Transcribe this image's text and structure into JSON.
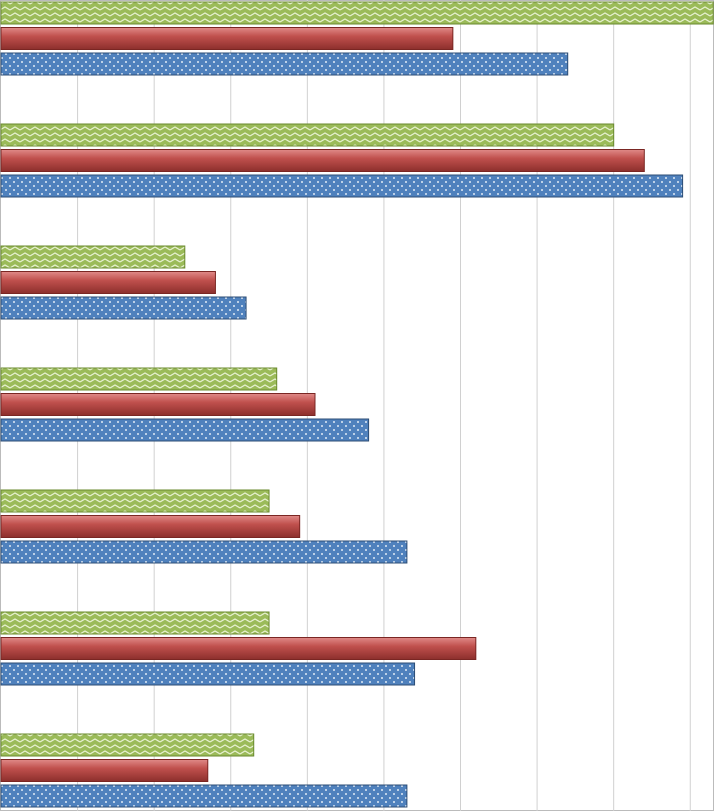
{
  "chart_data": {
    "type": "bar",
    "orientation": "horizontal",
    "categories": [
      null,
      null,
      null,
      null,
      null,
      null,
      null
    ],
    "series": [
      {
        "color": "#4f81bd",
        "values": [
          7.4,
          8.9,
          3.2,
          4.8,
          5.3,
          5.4,
          5.3
        ]
      },
      {
        "color": "#c0504d",
        "values": [
          5.9,
          8.4,
          2.8,
          4.1,
          3.9,
          6.2,
          2.7
        ]
      },
      {
        "color": "#9bbb59",
        "values": [
          9.3,
          8.0,
          2.4,
          3.6,
          3.5,
          3.5,
          3.3
        ]
      }
    ],
    "xlim": [
      0,
      9.31
    ],
    "xticks": [
      1,
      2,
      3,
      4,
      5,
      6,
      7,
      8,
      9
    ],
    "grid": true
  }
}
